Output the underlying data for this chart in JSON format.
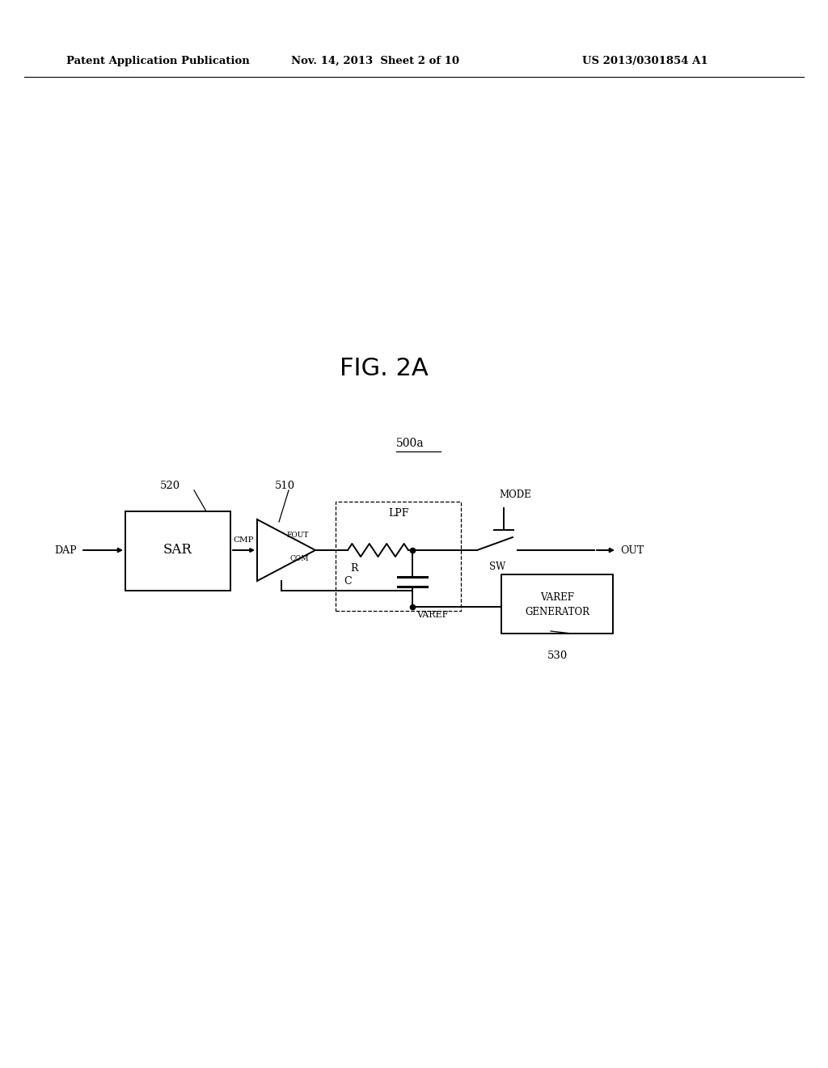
{
  "bg_color": "#ffffff",
  "text_color": "#000000",
  "header_left": "Patent Application Publication",
  "header_mid": "Nov. 14, 2013  Sheet 2 of 10",
  "header_right": "US 2013/0301854 A1",
  "fig_label": "FIG. 2A",
  "block_label": "500a",
  "sar_label": "SAR",
  "sar_ref": "520",
  "comp_ref": "510",
  "lpf_label": "LPF",
  "varef_gen_label1": "VAREF",
  "varef_gen_label2": "GENERATOR",
  "varef_gen_ref": "530",
  "dap_label": "DAP",
  "out_label": "OUT",
  "cmp_label": "CMP",
  "fout_label": "FOUT",
  "com_label": "COM",
  "r_label": "R",
  "c_label": "C",
  "varef_label": "VAREF",
  "mode_label": "MODE",
  "sw_label": "SW"
}
